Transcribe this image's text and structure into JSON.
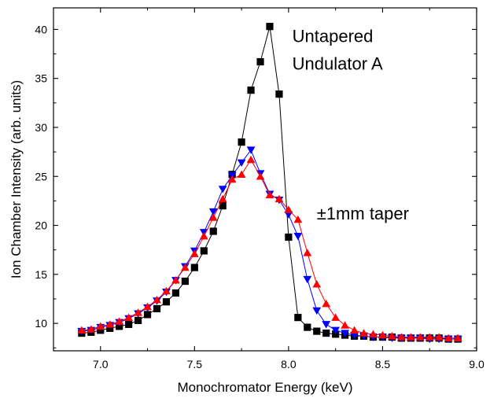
{
  "chart_data": {
    "type": "scatter",
    "xlabel": "Monochromator Energy (keV)",
    "ylabel": "Ion Chamber Intensity (arb. units)",
    "xlim": [
      6.75,
      9.0
    ],
    "ylim": [
      7.2,
      42.2
    ],
    "xticks": [
      7.0,
      7.5,
      8.0,
      8.5,
      9.0
    ],
    "xtick_labels": [
      "7.0",
      "7.5",
      "8.0",
      "8.5",
      "9.0"
    ],
    "yticks": [
      10,
      15,
      20,
      25,
      30,
      35,
      40
    ],
    "ytick_labels": [
      "10",
      "15",
      "20",
      "25",
      "30",
      "35",
      "40"
    ],
    "annotations": [
      {
        "text": "Untapered",
        "x": 8.02,
        "y": 38.7
      },
      {
        "text": "Undulator A",
        "x": 8.02,
        "y": 35.9
      },
      {
        "text": "±1mm taper",
        "x": 8.15,
        "y": 20.6
      }
    ],
    "series": [
      {
        "marker": "square",
        "color": "#000000",
        "x": [
          6.9,
          6.95,
          7.0,
          7.05,
          7.1,
          7.15,
          7.2,
          7.25,
          7.3,
          7.35,
          7.4,
          7.45,
          7.5,
          7.55,
          7.6,
          7.65,
          7.7,
          7.75,
          7.8,
          7.85,
          7.9,
          7.95,
          8.0,
          8.05,
          8.1,
          8.15,
          8.2,
          8.25,
          8.3,
          8.35,
          8.4,
          8.45,
          8.5,
          8.55,
          8.6,
          8.65,
          8.7,
          8.75,
          8.8,
          8.85,
          8.9
        ],
        "y": [
          9.0,
          9.1,
          9.3,
          9.5,
          9.7,
          9.9,
          10.3,
          10.9,
          11.5,
          12.2,
          13.1,
          14.3,
          15.7,
          17.4,
          19.4,
          22.0,
          25.2,
          28.5,
          33.8,
          36.7,
          40.3,
          33.4,
          18.8,
          10.6,
          9.6,
          9.2,
          9.0,
          8.9,
          8.8,
          8.7,
          8.7,
          8.6,
          8.6,
          8.6,
          8.5,
          8.5,
          8.5,
          8.5,
          8.5,
          8.4,
          8.4
        ]
      },
      {
        "marker": "triangle-down",
        "color": "#0000ff",
        "x": [
          6.9,
          6.95,
          7.0,
          7.05,
          7.1,
          7.15,
          7.2,
          7.25,
          7.3,
          7.35,
          7.4,
          7.45,
          7.5,
          7.55,
          7.6,
          7.65,
          7.7,
          7.75,
          7.8,
          7.85,
          7.9,
          7.95,
          8.0,
          8.05,
          8.1,
          8.15,
          8.2,
          8.25,
          8.3,
          8.35,
          8.4,
          8.45,
          8.5,
          8.55,
          8.6,
          8.65,
          8.7,
          8.75,
          8.8,
          8.85,
          8.9
        ],
        "y": [
          9.2,
          9.3,
          9.6,
          9.8,
          10.1,
          10.5,
          11.0,
          11.6,
          12.3,
          13.2,
          14.4,
          15.8,
          17.4,
          19.3,
          21.4,
          23.7,
          25.1,
          26.4,
          27.7,
          25.3,
          23.2,
          22.6,
          21.1,
          18.9,
          14.5,
          11.3,
          9.9,
          9.3,
          9.0,
          8.8,
          8.7,
          8.6,
          8.6,
          8.5,
          8.5,
          8.5,
          8.5,
          8.4,
          8.4,
          8.4,
          8.4
        ]
      },
      {
        "marker": "triangle-up",
        "color": "#ff0000",
        "x": [
          6.9,
          6.95,
          7.0,
          7.05,
          7.1,
          7.15,
          7.2,
          7.25,
          7.3,
          7.35,
          7.4,
          7.45,
          7.5,
          7.55,
          7.6,
          7.65,
          7.7,
          7.75,
          7.8,
          7.85,
          7.9,
          7.95,
          8.0,
          8.05,
          8.1,
          8.15,
          8.2,
          8.25,
          8.3,
          8.35,
          8.4,
          8.45,
          8.5,
          8.55,
          8.6,
          8.65,
          8.7,
          8.75,
          8.8,
          8.85,
          8.9
        ],
        "y": [
          9.3,
          9.4,
          9.7,
          9.9,
          10.2,
          10.6,
          11.1,
          11.7,
          12.4,
          13.3,
          14.4,
          15.7,
          17.1,
          18.9,
          20.8,
          22.7,
          24.7,
          25.2,
          26.7,
          25.0,
          23.1,
          22.7,
          21.6,
          20.6,
          17.2,
          14.0,
          12.0,
          10.6,
          9.8,
          9.3,
          9.0,
          8.9,
          8.8,
          8.7,
          8.6,
          8.6,
          8.6,
          8.6,
          8.6,
          8.5,
          8.5
        ]
      }
    ]
  }
}
